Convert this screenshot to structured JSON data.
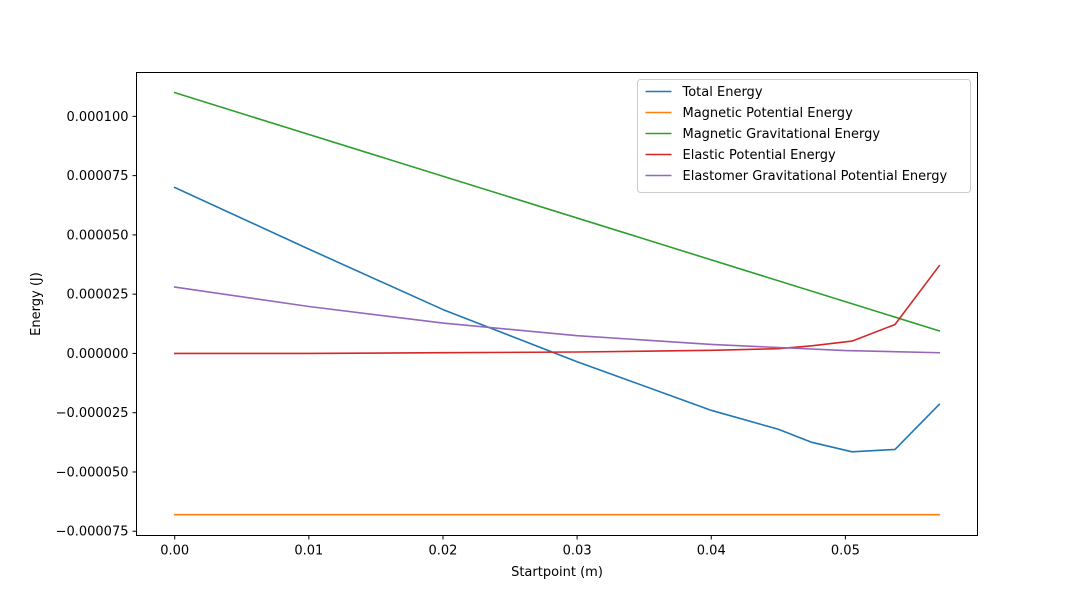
{
  "chart_data": {
    "type": "line",
    "title": "",
    "xlabel": "Startpoint (m)",
    "ylabel": "Energy (J)",
    "xlim": [
      -0.00285,
      0.05985
    ],
    "ylim": [
      -7.68e-05,
      0.0001185
    ],
    "x_ticks": [
      {
        "value": 0.0,
        "label": "0.00"
      },
      {
        "value": 0.01,
        "label": "0.01"
      },
      {
        "value": 0.02,
        "label": "0.02"
      },
      {
        "value": 0.03,
        "label": "0.03"
      },
      {
        "value": 0.04,
        "label": "0.04"
      },
      {
        "value": 0.05,
        "label": "0.05"
      }
    ],
    "y_ticks": [
      {
        "value": -7.5e-05,
        "label": "−0.000075"
      },
      {
        "value": -5e-05,
        "label": "−0.000050"
      },
      {
        "value": -2.5e-05,
        "label": "−0.000025"
      },
      {
        "value": 0.0,
        "label": "0.000000"
      },
      {
        "value": 2.5e-05,
        "label": "0.000025"
      },
      {
        "value": 5e-05,
        "label": "0.000050"
      },
      {
        "value": 7.5e-05,
        "label": "0.000075"
      },
      {
        "value": 0.0001,
        "label": "0.000100"
      }
    ],
    "legend_position": "top-right",
    "series": [
      {
        "name": "Total Energy",
        "color": "#1f77b4",
        "x": [
          0.0,
          0.01,
          0.02,
          0.03,
          0.04,
          0.045,
          0.0475,
          0.0505,
          0.0537,
          0.057
        ],
        "y": [
          7e-05,
          4.4e-05,
          1.85e-05,
          -3.5e-06,
          -2.4e-05,
          -3.2e-05,
          -3.75e-05,
          -4.15e-05,
          -4.05e-05,
          -2.15e-05
        ]
      },
      {
        "name": "Magnetic Potential Energy",
        "color": "#ff7f0e",
        "x": [
          0.0,
          0.057
        ],
        "y": [
          -6.8e-05,
          -6.8e-05
        ]
      },
      {
        "name": "Magnetic Gravitational Energy",
        "color": "#2ca02c",
        "x": [
          0.0,
          0.057
        ],
        "y": [
          0.00011,
          9.5e-06
        ]
      },
      {
        "name": "Elastic Potential Energy",
        "color": "#d62728",
        "x": [
          0.0,
          0.01,
          0.02,
          0.03,
          0.04,
          0.045,
          0.0475,
          0.0505,
          0.0537,
          0.057
        ],
        "y": [
          0.0,
          0.0,
          3e-07,
          6e-07,
          1.3e-06,
          2e-06,
          3.2e-06,
          5.2e-06,
          1.22e-05,
          3.7e-05
        ]
      },
      {
        "name": "Elastomer Gravitational Potential Energy",
        "color": "#9467bd",
        "x": [
          0.0,
          0.01,
          0.02,
          0.03,
          0.04,
          0.05,
          0.057
        ],
        "y": [
          2.8e-05,
          1.98e-05,
          1.28e-05,
          7.5e-06,
          3.8e-06,
          1.2e-06,
          3e-07
        ]
      }
    ]
  }
}
